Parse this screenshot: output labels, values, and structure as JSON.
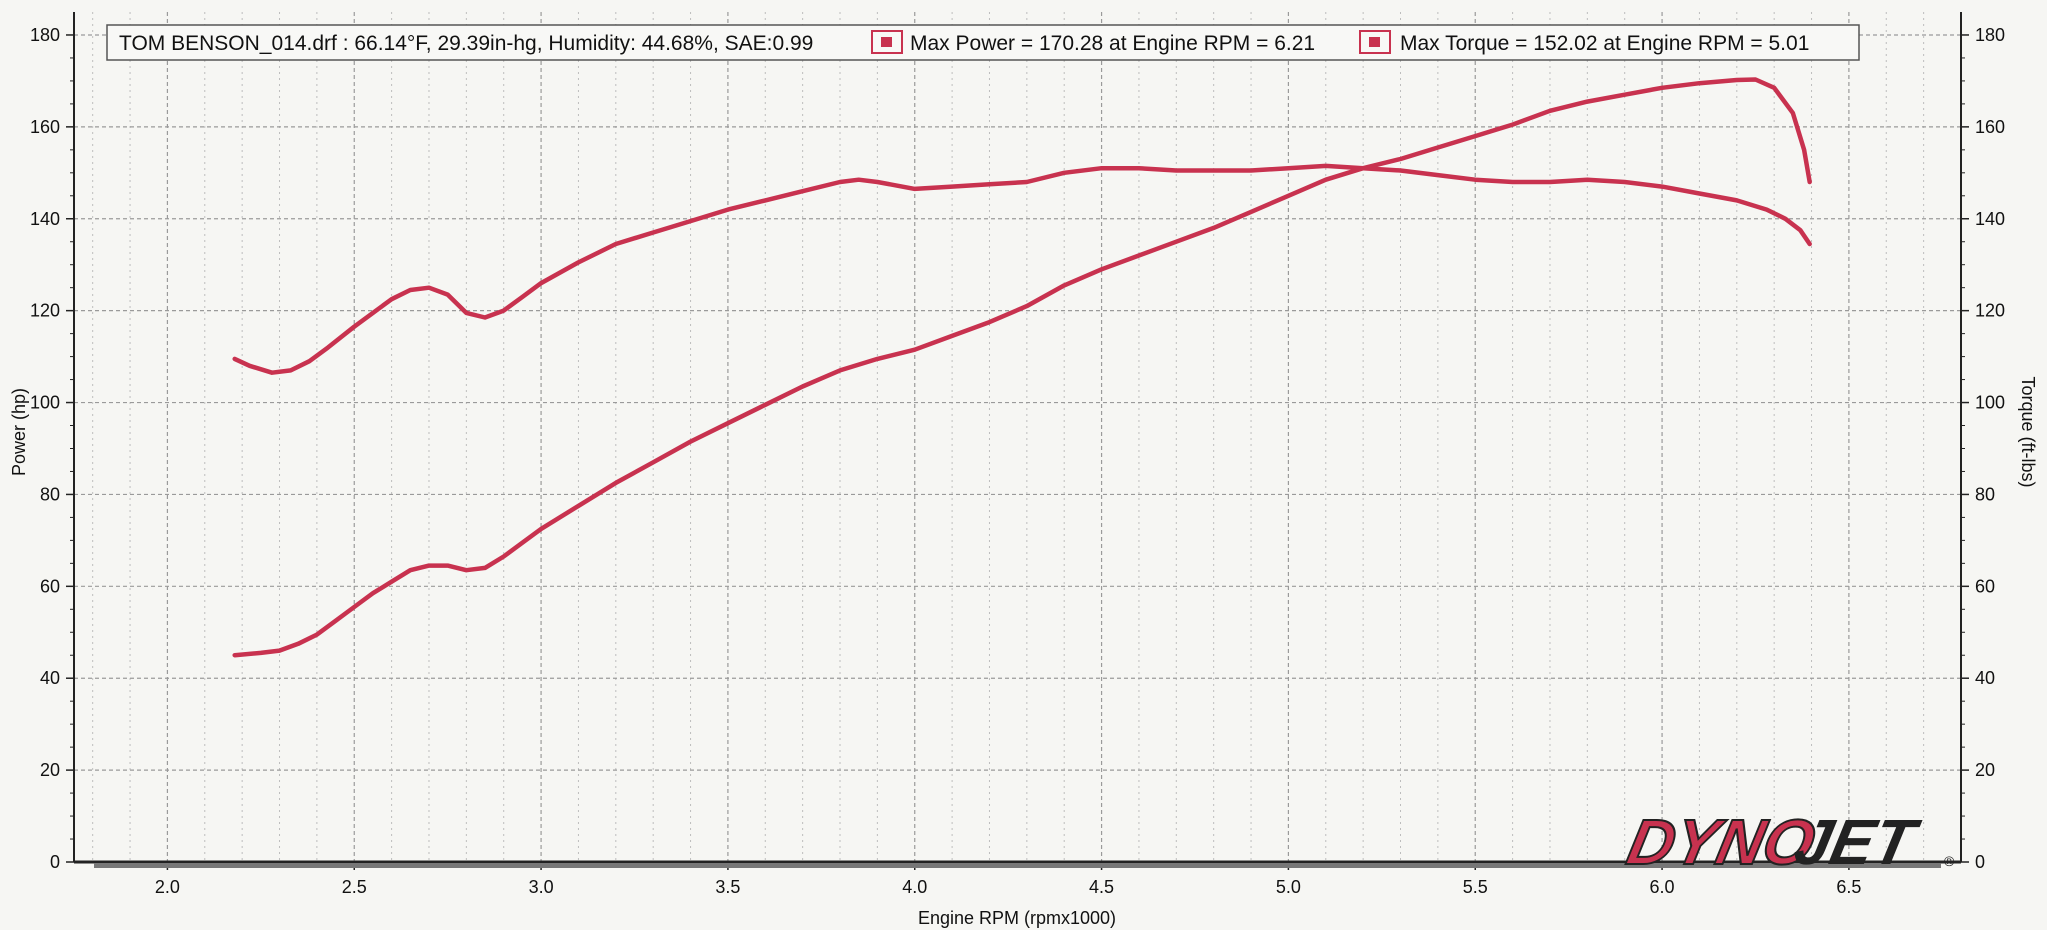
{
  "chart_data": {
    "type": "line",
    "title": "",
    "xlabel": "Engine RPM (rpmx1000)",
    "ylabel": "Power (hp)",
    "y2label": "Torque (ft-lbs)",
    "xlim": [
      1.75,
      6.8
    ],
    "ylim": [
      0,
      185
    ],
    "y2lim": [
      0,
      185
    ],
    "x_ticks": [
      "2.0",
      "2.5",
      "3.0",
      "3.5",
      "4.0",
      "4.5",
      "5.0",
      "5.5",
      "6.0",
      "6.5"
    ],
    "y_ticks": [
      "0",
      "20",
      "40",
      "60",
      "80",
      "100",
      "120",
      "140",
      "160",
      "180"
    ],
    "y2_ticks": [
      "0",
      "20",
      "40",
      "60",
      "80",
      "100",
      "120",
      "140",
      "160",
      "180"
    ],
    "grid": true,
    "legend_position": "top",
    "legend": {
      "run_info": "TOM BENSON_014.drf : 66.14°F, 29.39in-hg, Humidity: 44.68%, SAE:0.99",
      "entries": [
        "Max Power = 170.28 at Engine RPM = 6.21",
        "Max Torque = 152.02 at Engine RPM = 5.01"
      ]
    },
    "series": [
      {
        "axis": "left",
        "color": "#c8324f",
        "points": [
          [
            2.18,
            45
          ],
          [
            2.25,
            45.5
          ],
          [
            2.3,
            46
          ],
          [
            2.35,
            47.5
          ],
          [
            2.4,
            49.5
          ],
          [
            2.45,
            52.5
          ],
          [
            2.5,
            55.5
          ],
          [
            2.55,
            58.5
          ],
          [
            2.6,
            61
          ],
          [
            2.65,
            63.5
          ],
          [
            2.7,
            64.5
          ],
          [
            2.75,
            64.5
          ],
          [
            2.8,
            63.5
          ],
          [
            2.85,
            64
          ],
          [
            2.9,
            66.5
          ],
          [
            2.95,
            69.5
          ],
          [
            3.0,
            72.5
          ],
          [
            3.1,
            77.5
          ],
          [
            3.2,
            82.5
          ],
          [
            3.3,
            87
          ],
          [
            3.4,
            91.5
          ],
          [
            3.5,
            95.5
          ],
          [
            3.6,
            99.5
          ],
          [
            3.7,
            103.5
          ],
          [
            3.8,
            107
          ],
          [
            3.9,
            109.5
          ],
          [
            4.0,
            111.5
          ],
          [
            4.1,
            114.5
          ],
          [
            4.2,
            117.5
          ],
          [
            4.3,
            121
          ],
          [
            4.4,
            125.5
          ],
          [
            4.5,
            129
          ],
          [
            4.6,
            132
          ],
          [
            4.7,
            135
          ],
          [
            4.8,
            138
          ],
          [
            4.9,
            141.5
          ],
          [
            5.0,
            145
          ],
          [
            5.1,
            148.5
          ],
          [
            5.2,
            151
          ],
          [
            5.3,
            153
          ],
          [
            5.4,
            155.5
          ],
          [
            5.5,
            158
          ],
          [
            5.6,
            160.5
          ],
          [
            5.7,
            163.5
          ],
          [
            5.8,
            165.5
          ],
          [
            5.9,
            167
          ],
          [
            6.0,
            168.5
          ],
          [
            6.1,
            169.5
          ],
          [
            6.2,
            170.2
          ],
          [
            6.25,
            170.3
          ],
          [
            6.3,
            168.5
          ],
          [
            6.35,
            163
          ],
          [
            6.38,
            155
          ],
          [
            6.395,
            148
          ]
        ]
      },
      {
        "axis": "right",
        "color": "#c8324f",
        "points": [
          [
            2.18,
            109.5
          ],
          [
            2.22,
            108
          ],
          [
            2.28,
            106.5
          ],
          [
            2.33,
            107
          ],
          [
            2.38,
            109
          ],
          [
            2.43,
            112
          ],
          [
            2.5,
            116.5
          ],
          [
            2.55,
            119.5
          ],
          [
            2.6,
            122.5
          ],
          [
            2.65,
            124.5
          ],
          [
            2.7,
            125
          ],
          [
            2.75,
            123.5
          ],
          [
            2.8,
            119.5
          ],
          [
            2.85,
            118.5
          ],
          [
            2.9,
            120
          ],
          [
            2.95,
            123
          ],
          [
            3.0,
            126
          ],
          [
            3.1,
            130.5
          ],
          [
            3.2,
            134.5
          ],
          [
            3.3,
            137
          ],
          [
            3.4,
            139.5
          ],
          [
            3.5,
            142
          ],
          [
            3.6,
            144
          ],
          [
            3.7,
            146
          ],
          [
            3.8,
            148
          ],
          [
            3.85,
            148.5
          ],
          [
            3.9,
            148
          ],
          [
            4.0,
            146.5
          ],
          [
            4.1,
            147
          ],
          [
            4.2,
            147.5
          ],
          [
            4.3,
            148
          ],
          [
            4.4,
            150
          ],
          [
            4.5,
            151
          ],
          [
            4.6,
            151
          ],
          [
            4.7,
            150.5
          ],
          [
            4.8,
            150.5
          ],
          [
            4.9,
            150.5
          ],
          [
            5.0,
            151
          ],
          [
            5.1,
            151.5
          ],
          [
            5.2,
            151
          ],
          [
            5.3,
            150.5
          ],
          [
            5.4,
            149.5
          ],
          [
            5.5,
            148.5
          ],
          [
            5.6,
            148
          ],
          [
            5.7,
            148
          ],
          [
            5.8,
            148.5
          ],
          [
            5.9,
            148
          ],
          [
            6.0,
            147
          ],
          [
            6.1,
            145.5
          ],
          [
            6.2,
            144
          ],
          [
            6.28,
            142
          ],
          [
            6.33,
            140
          ],
          [
            6.37,
            137.5
          ],
          [
            6.395,
            134.5
          ]
        ]
      }
    ]
  },
  "logo": {
    "part1": "DYNO",
    "part2": "JET",
    "mark": "®",
    "color1": "#c8324f",
    "color2": "#222222"
  },
  "colors": {
    "background": "#f6f6f3",
    "grid": "#9a9a9a",
    "curve": "#c8324f"
  }
}
